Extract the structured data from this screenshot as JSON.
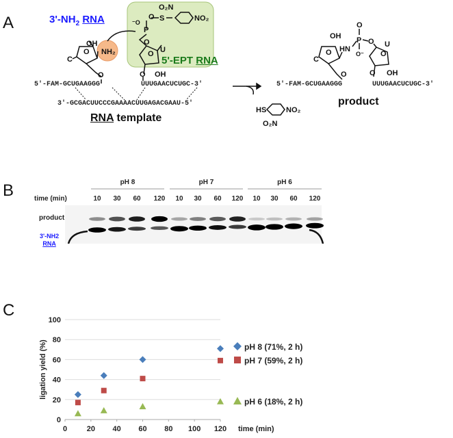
{
  "panels": {
    "a": "A",
    "b": "B",
    "c": "C"
  },
  "panel_a": {
    "amine_rna_label": "3'-NH",
    "amine_rna_sub": "2",
    "amine_rna_rna": "RNA",
    "ept_rna_label": "5'-EPT ",
    "ept_rna_rna": "RNA",
    "nh2": "NH2",
    "oh": "OH",
    "c_base": "C",
    "u_base": "U",
    "strand_left": "5'-FAM-GCUGAAGGG",
    "strand_right": "UUUGAACUCUGC-3'",
    "template_strand": "3'-GCGACUUCCCGAAAACUUGAGACGAAU-5'",
    "template_label_rna": "RNA",
    "template_label_rest": " template",
    "leaving_group_hs": "HS",
    "no2": "NO2",
    "o2n": "O2N",
    "hn": "HN",
    "product_label": "product",
    "colors": {
      "amine": "#1a1aff",
      "ept": "#1a7a1a",
      "box": "#dcebc0",
      "nh2_circle": "#f6b98a"
    }
  },
  "panel_b": {
    "groups": [
      "pH 8",
      "pH 7",
      "pH 6"
    ],
    "time_label": "time (min)",
    "times": [
      "10",
      "30",
      "60",
      "120"
    ],
    "product_label": "product",
    "substrate_label_1": "3'-NH2",
    "substrate_label_2": "RNA"
  },
  "chart_data": {
    "type": "scatter",
    "title": "",
    "xlabel": "time (min)",
    "ylabel": "ligation yield (%)",
    "xlim": [
      0,
      120
    ],
    "ylim": [
      0,
      100
    ],
    "xticks": [
      0,
      20,
      40,
      60,
      80,
      100,
      120
    ],
    "yticks": [
      0,
      20,
      40,
      60,
      80,
      100
    ],
    "grid": "horizontal",
    "legend_placement": "right",
    "x": [
      10,
      30,
      60,
      120
    ],
    "series": [
      {
        "name": "pH 8 (71%, 2 h)",
        "marker": "diamond",
        "color": "#4a7ebb",
        "values": [
          25,
          44,
          60,
          71
        ]
      },
      {
        "name": "pH 7 (59%, 2 h)",
        "marker": "square",
        "color": "#be4b48",
        "values": [
          17,
          29,
          41,
          59
        ]
      },
      {
        "name": "pH 6 (18%, 2 h)",
        "marker": "triangle",
        "color": "#98b954",
        "values": [
          6,
          9,
          13,
          18
        ]
      }
    ]
  }
}
